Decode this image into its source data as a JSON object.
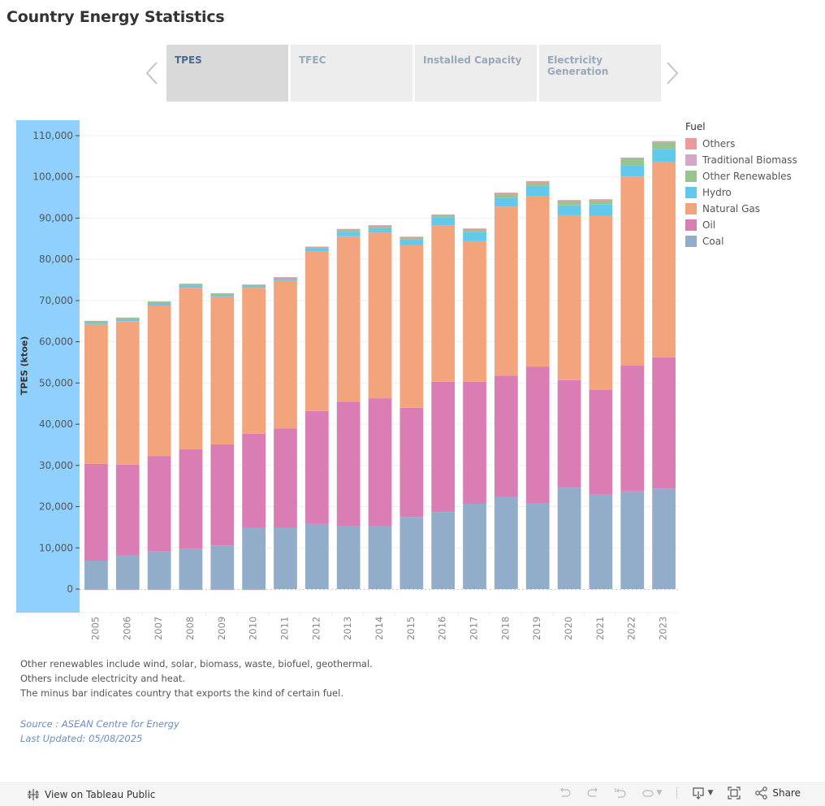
{
  "page": {
    "title": "Country Energy Statistics"
  },
  "tabs": [
    {
      "label": "TPES",
      "active": true
    },
    {
      "label": "TFEC",
      "active": false
    },
    {
      "label": "Installed Capacity",
      "active": false
    },
    {
      "label": "Electricity Generation",
      "active": false
    }
  ],
  "nav": {
    "prev_icon": "chevron-left-icon",
    "next_icon": "chevron-right-icon"
  },
  "legend": {
    "title": "Fuel",
    "items": [
      {
        "label": "Others",
        "color": "#ef9a9a"
      },
      {
        "label": "Traditional Biomass",
        "color": "#d4a6c8"
      },
      {
        "label": "Other Renewables",
        "color": "#99c490"
      },
      {
        "label": "Hydro",
        "color": "#63c9ec"
      },
      {
        "label": "Natural Gas",
        "color": "#f4a47c"
      },
      {
        "label": "Oil",
        "color": "#da7db5"
      },
      {
        "label": "Coal",
        "color": "#92adca"
      }
    ]
  },
  "chart_data": {
    "type": "bar",
    "stacked": true,
    "title": "",
    "xlabel": "",
    "ylabel": "TPES (ktoe)",
    "ylim": [
      0,
      110000
    ],
    "yticks": [
      0,
      10000,
      20000,
      30000,
      40000,
      50000,
      60000,
      70000,
      80000,
      90000,
      100000,
      110000
    ],
    "ytick_labels": [
      "0",
      "10,000",
      "20,000",
      "30,000",
      "40,000",
      "50,000",
      "60,000",
      "70,000",
      "80,000",
      "90,000",
      "100,000",
      "110,000"
    ],
    "grid": true,
    "legend_position": "right",
    "categories": [
      "2005",
      "2006",
      "2007",
      "2008",
      "2009",
      "2010",
      "2011",
      "2012",
      "2013",
      "2014",
      "2015",
      "2016",
      "2017",
      "2018",
      "2019",
      "2020",
      "2021",
      "2022",
      "2023"
    ],
    "series": [
      {
        "name": "Coal",
        "color": "#92adca",
        "values": [
          6900,
          8100,
          9100,
          9700,
          10600,
          14800,
          14800,
          15800,
          15200,
          15200,
          17500,
          18700,
          20700,
          22300,
          20900,
          24600,
          22900,
          23700,
          24400
        ]
      },
      {
        "name": "Oil",
        "color": "#da7db5",
        "values": [
          23500,
          22100,
          23200,
          24200,
          24500,
          22900,
          24200,
          27400,
          30300,
          31100,
          26500,
          31600,
          29600,
          29500,
          33100,
          26100,
          25400,
          30500,
          31800
        ]
      },
      {
        "name": "Natural Gas",
        "color": "#f4a47c",
        "values": [
          33900,
          34800,
          36500,
          39200,
          35900,
          35400,
          35900,
          38800,
          40100,
          40200,
          39400,
          38000,
          34100,
          41000,
          41400,
          40000,
          42200,
          45900,
          47500
        ]
      },
      {
        "name": "Hydro",
        "color": "#63c9ec",
        "values": [
          500,
          600,
          600,
          600,
          500,
          500,
          400,
          600,
          1100,
          1100,
          1400,
          1800,
          2200,
          2100,
          2400,
          2400,
          2800,
          2600,
          3000
        ]
      },
      {
        "name": "Other Renewables",
        "color": "#99c490",
        "values": [
          100,
          100,
          200,
          200,
          100,
          100,
          100,
          200,
          400,
          400,
          400,
          500,
          600,
          900,
          800,
          1000,
          1000,
          1600,
          1600
        ]
      },
      {
        "name": "Traditional Biomass",
        "color": "#d4a6c8",
        "values": [
          0,
          0,
          0,
          0,
          0,
          0,
          0,
          0,
          0,
          0,
          0,
          0,
          0,
          0,
          0,
          0,
          0,
          0,
          0
        ]
      },
      {
        "name": "Others",
        "color": "#ef9a9a",
        "values": [
          -150,
          -150,
          -150,
          -150,
          -150,
          -150,
          100,
          100,
          100,
          100,
          100,
          100,
          100,
          200,
          200,
          100,
          100,
          200,
          200
        ]
      }
    ]
  },
  "notes": [
    "Other renewables include wind, solar, biomass, waste, biofuel, geothermal.",
    "Others include electricity and heat.",
    "The minus bar indicates country that exports the kind of certain fuel."
  ],
  "source": {
    "line1": "Source : ASEAN Centre for Energy",
    "line2": "Last Updated: 05/08/2025"
  },
  "toolbar": {
    "view_on_tableau": "View on Tableau Public",
    "share_label": "Share",
    "undo_icon": "undo-icon",
    "redo_icon": "redo-icon",
    "revert_icon": "revert-icon",
    "refresh_icon": "refresh-icon",
    "download_icon": "download-icon",
    "fullscreen_icon": "fullscreen-icon",
    "share_icon": "share-icon"
  }
}
